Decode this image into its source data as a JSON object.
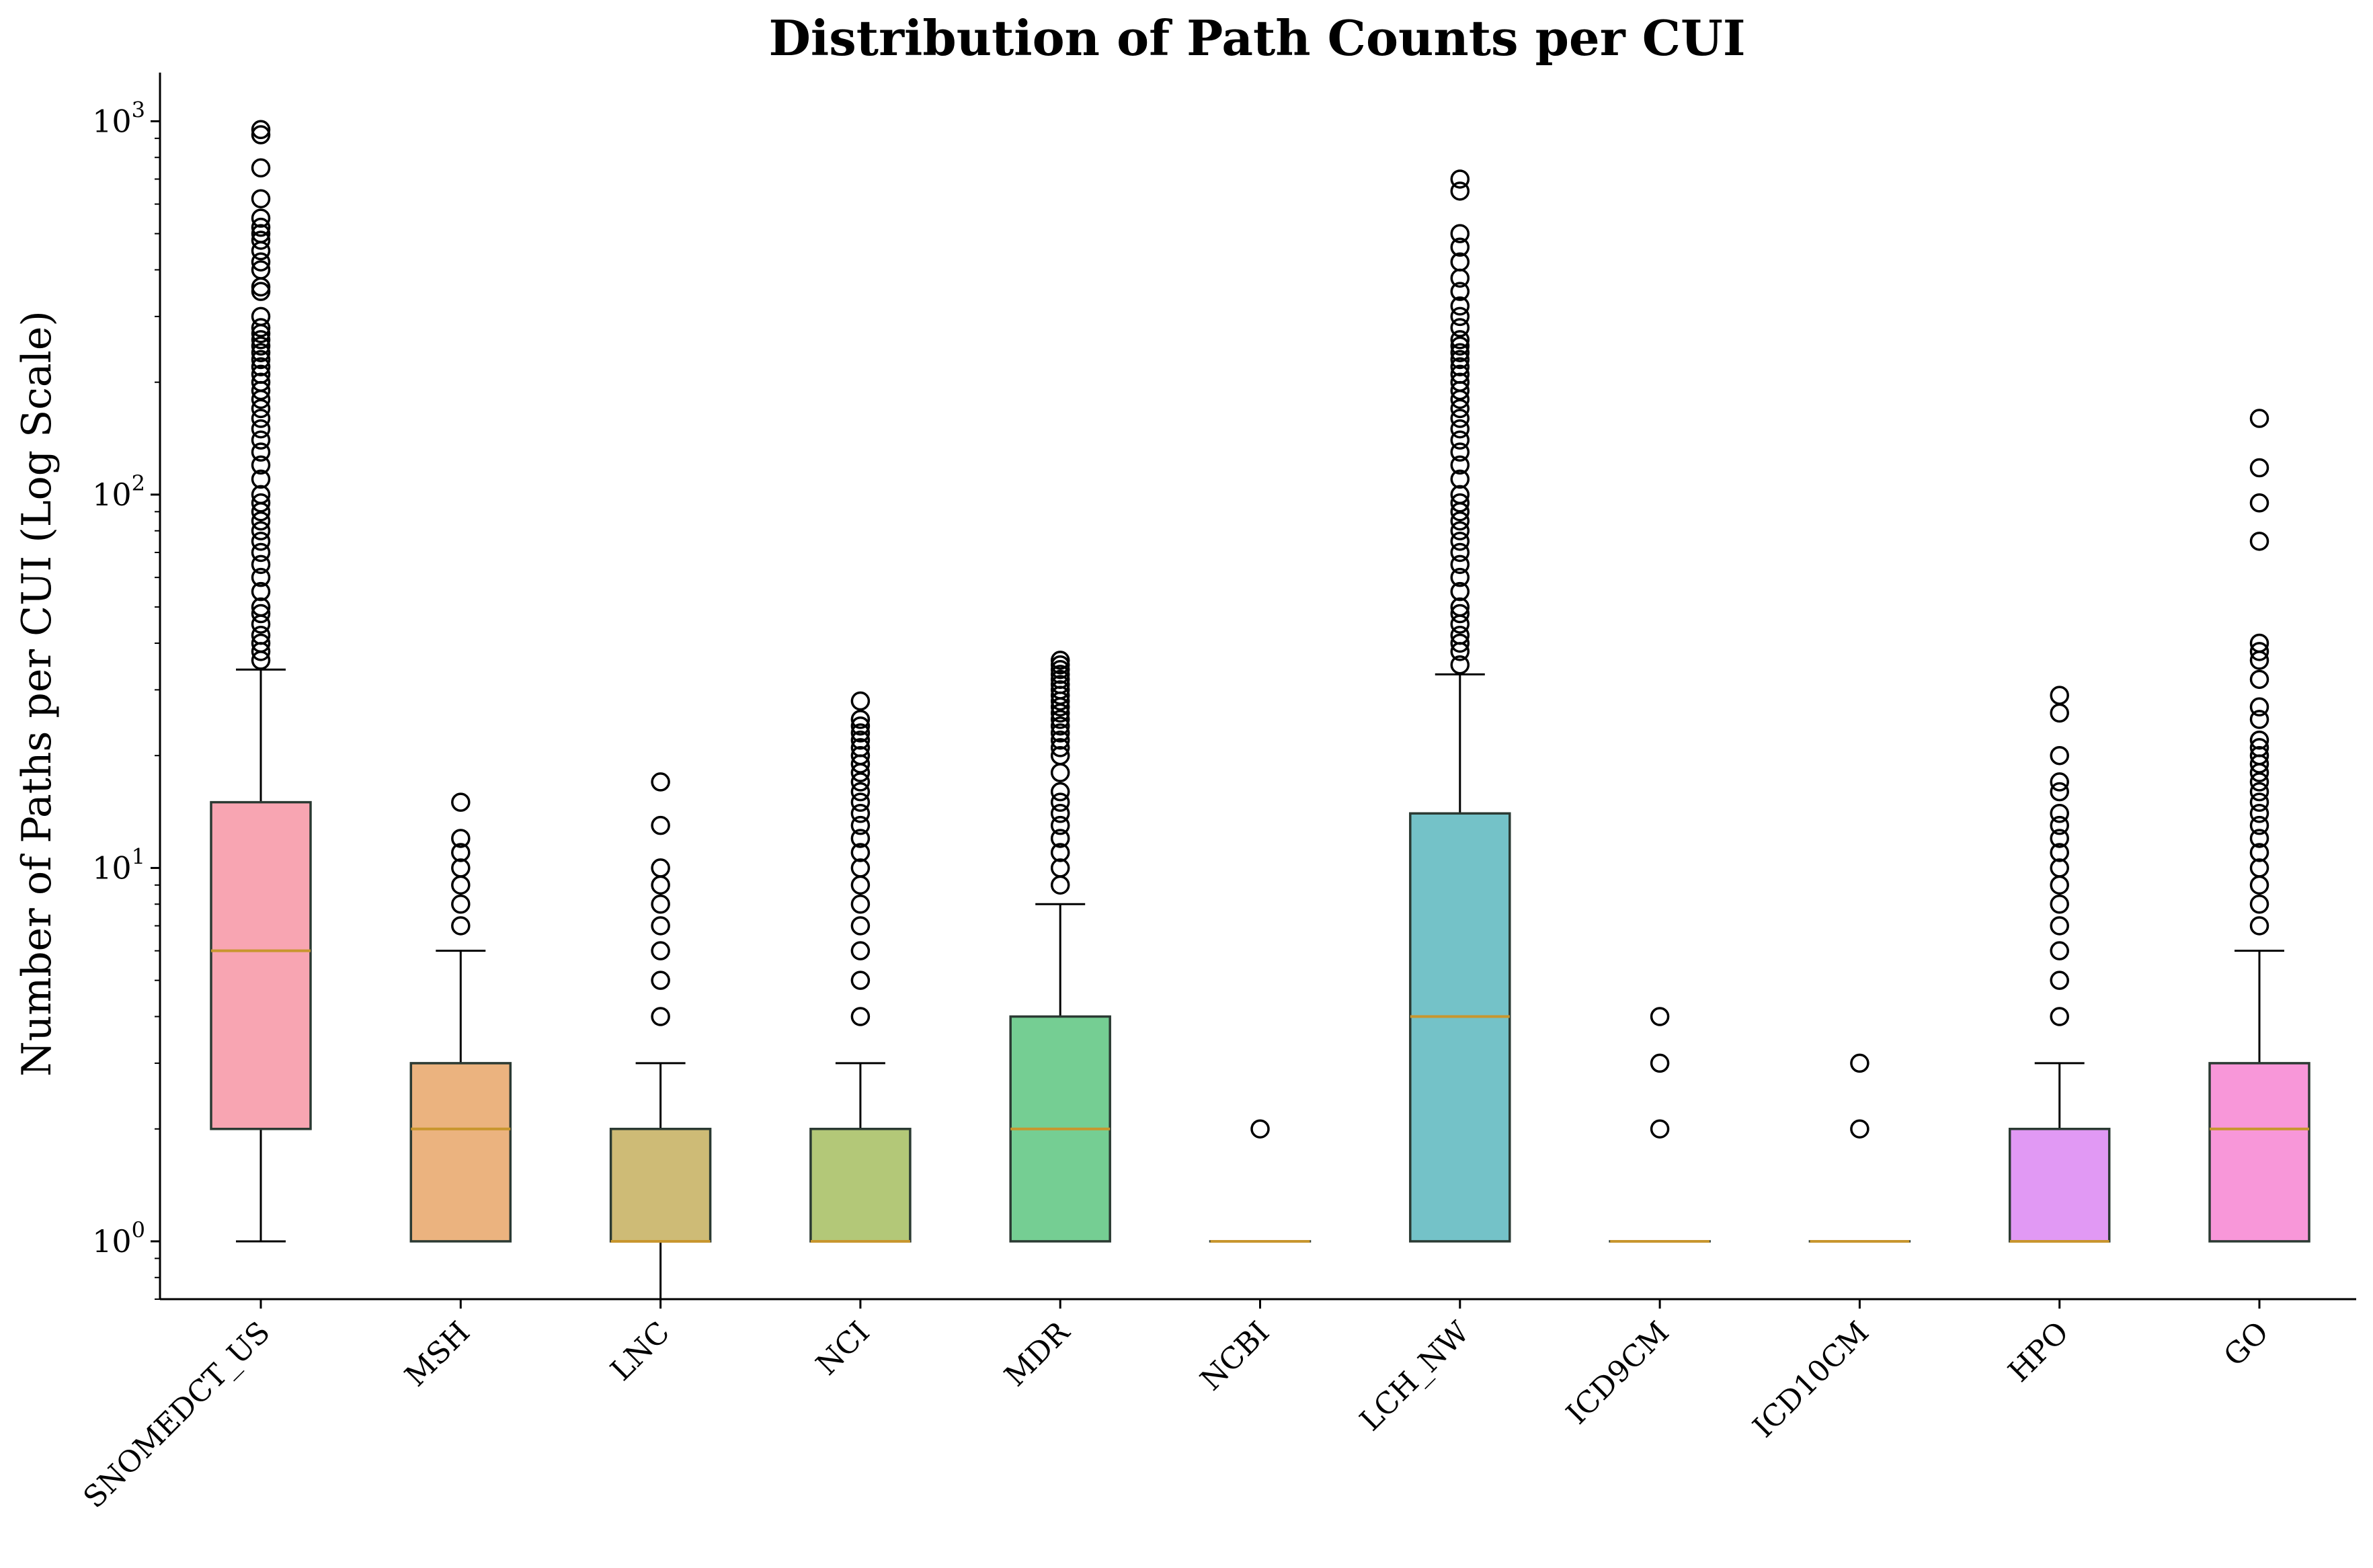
{
  "chart_data": {
    "type": "box",
    "title": "Distribution of Path Counts per CUI",
    "xlabel": "",
    "ylabel": "Number of Paths per CUI (Log Scale)",
    "yscale": "log",
    "ylim": [
      0.7,
      1350
    ],
    "yticks": [
      {
        "value": 1,
        "base": "10",
        "exp": "0"
      },
      {
        "value": 10,
        "base": "10",
        "exp": "1"
      },
      {
        "value": 100,
        "base": "10",
        "exp": "2"
      },
      {
        "value": 1000,
        "base": "10",
        "exp": "3"
      }
    ],
    "median_color": "#c8962e",
    "categories": [
      "SNOMEDCT_US",
      "MSH",
      "LNC",
      "NCI",
      "MDR",
      "NCBI",
      "LCH_NW",
      "ICD9CM",
      "ICD10CM",
      "HPO",
      "GO"
    ],
    "series": [
      {
        "name": "SNOMEDCT_US",
        "color": "#f47489",
        "q1": 2,
        "median": 6,
        "q3": 15,
        "whislo": 1,
        "whishi": 34,
        "fliers": [
          36,
          38,
          40,
          42,
          45,
          48,
          50,
          55,
          60,
          65,
          70,
          75,
          80,
          85,
          90,
          95,
          100,
          110,
          120,
          130,
          140,
          150,
          160,
          170,
          180,
          190,
          200,
          210,
          220,
          230,
          240,
          250,
          260,
          270,
          280,
          300,
          350,
          360,
          400,
          420,
          450,
          480,
          500,
          520,
          550,
          620,
          750,
          920,
          950
        ]
      },
      {
        "name": "MSH",
        "color": "#e18a3a",
        "q1": 1,
        "median": 2,
        "q3": 3,
        "whislo": 1,
        "whishi": 6,
        "fliers": [
          7,
          8,
          9,
          10,
          11,
          12,
          15
        ]
      },
      {
        "name": "LNC",
        "color": "#b4962c",
        "q1": 1,
        "median": 1,
        "q3": 2,
        "whislo": 0.7,
        "whishi": 3,
        "fliers": [
          4,
          5,
          6,
          7,
          8,
          9,
          10,
          13,
          17
        ]
      },
      {
        "name": "NCI",
        "color": "#8baa2f",
        "q1": 1,
        "median": 1,
        "q3": 2,
        "whislo": 1,
        "whishi": 3,
        "fliers": [
          4,
          5,
          6,
          7,
          8,
          9,
          10,
          11,
          12,
          13,
          14,
          15,
          16,
          17,
          18,
          19,
          20,
          21,
          22,
          23,
          24,
          25,
          28
        ]
      },
      {
        "name": "MDR",
        "color": "#2bb359",
        "q1": 1,
        "median": 2,
        "q3": 4,
        "whislo": 1,
        "whishi": 8,
        "fliers": [
          9,
          10,
          11,
          12,
          13,
          14,
          15,
          16,
          18,
          20,
          21,
          22,
          23,
          24,
          25,
          26,
          27,
          28,
          29,
          30,
          31,
          32,
          33,
          34,
          35,
          36
        ]
      },
      {
        "name": "NCBI",
        "color": "#34ae91",
        "q1": 1,
        "median": 1,
        "q3": 1,
        "whislo": 1,
        "whishi": 1,
        "fliers": [
          2
        ]
      },
      {
        "name": "LCH_NW",
        "color": "#2aa2aa",
        "q1": 1,
        "median": 4,
        "q3": 14,
        "whislo": 1,
        "whishi": 33,
        "fliers": [
          35,
          38,
          40,
          42,
          45,
          48,
          50,
          55,
          60,
          65,
          70,
          75,
          80,
          85,
          90,
          95,
          100,
          110,
          120,
          130,
          140,
          150,
          160,
          170,
          180,
          190,
          200,
          210,
          220,
          230,
          240,
          250,
          260,
          280,
          300,
          320,
          350,
          380,
          420,
          460,
          500,
          650,
          700
        ]
      },
      {
        "name": "ICD9CM",
        "color": "#37a5cf",
        "q1": 1,
        "median": 1,
        "q3": 1,
        "whislo": 1,
        "whishi": 1,
        "fliers": [
          2,
          3,
          4
        ]
      },
      {
        "name": "ICD10CM",
        "color": "#8d9ff4",
        "q1": 1,
        "median": 1,
        "q3": 1,
        "whislo": 1,
        "whishi": 1,
        "fliers": [
          2,
          3
        ]
      },
      {
        "name": "HPO",
        "color": "#d162ee",
        "q1": 1,
        "median": 1,
        "q3": 2,
        "whislo": 1,
        "whishi": 3,
        "fliers": [
          4,
          5,
          6,
          7,
          8,
          9,
          10,
          11,
          12,
          13,
          14,
          16,
          17,
          20,
          26,
          29
        ]
      },
      {
        "name": "GO",
        "color": "#f55fc4",
        "q1": 1,
        "median": 2,
        "q3": 3,
        "whislo": 1,
        "whishi": 6,
        "fliers": [
          7,
          8,
          9,
          10,
          11,
          12,
          13,
          14,
          15,
          16,
          17,
          18,
          19,
          20,
          21,
          22,
          25,
          27,
          32,
          36,
          38,
          40,
          75,
          95,
          118,
          160
        ]
      }
    ]
  }
}
